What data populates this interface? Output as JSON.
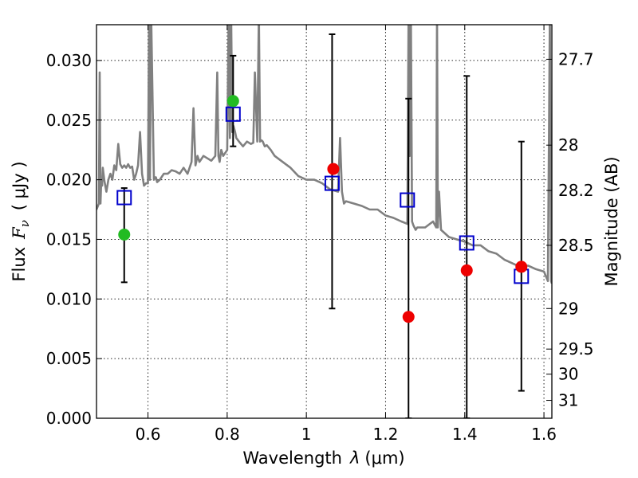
{
  "chart_data": {
    "type": "scatter",
    "xlabel_main": "Wavelength",
    "xlabel_symbol": "λ",
    "xlabel_unit": "(μm)",
    "ylabel_main": "Flux",
    "ylabel_symbol": "F",
    "ylabel_symbol_sub": "ν",
    "ylabel_unit": "( μJy )",
    "y2label": "Magnitude (AB)",
    "xlim": [
      0.47,
      1.62
    ],
    "ylim": [
      0.0,
      0.033
    ],
    "x_ticks": [
      {
        "value": 0.6,
        "label": "0.6"
      },
      {
        "value": 0.8,
        "label": "0.8"
      },
      {
        "value": 1.0,
        "label": "1"
      },
      {
        "value": 1.2,
        "label": "1.2"
      },
      {
        "value": 1.4,
        "label": "1.4"
      },
      {
        "value": 1.6,
        "label": "1.6"
      }
    ],
    "y_ticks": [
      {
        "value": 0.0,
        "label": "0.000"
      },
      {
        "value": 0.005,
        "label": "0.005"
      },
      {
        "value": 0.01,
        "label": "0.010"
      },
      {
        "value": 0.015,
        "label": "0.015"
      },
      {
        "value": 0.02,
        "label": "0.020"
      },
      {
        "value": 0.025,
        "label": "0.025"
      },
      {
        "value": 0.03,
        "label": "0.030"
      }
    ],
    "y2_ticks": [
      {
        "flux": 0.0301,
        "label": "27.7"
      },
      {
        "flux": 0.0229,
        "label": "28"
      },
      {
        "flux": 0.0191,
        "label": "28.2"
      },
      {
        "flux": 0.0145,
        "label": "28.5"
      },
      {
        "flux": 0.0092,
        "label": "29"
      },
      {
        "flux": 0.0058,
        "label": "29.5"
      },
      {
        "flux": 0.0037,
        "label": "30"
      },
      {
        "flux": 0.0015,
        "label": "31"
      }
    ],
    "grid": true,
    "colors": {
      "model": "#808080",
      "model_points": "#0000cc",
      "green_points": "#22bb22",
      "red_points": "#ee0000",
      "errorbars": "#000000"
    },
    "series": [
      {
        "name": "model_spectrum",
        "kind": "line",
        "x": [
          0.47,
          0.476,
          0.478,
          0.48,
          0.482,
          0.484,
          0.486,
          0.49,
          0.495,
          0.5,
          0.505,
          0.51,
          0.515,
          0.52,
          0.525,
          0.53,
          0.535,
          0.54,
          0.545,
          0.55,
          0.555,
          0.56,
          0.565,
          0.57,
          0.575,
          0.58,
          0.585,
          0.59,
          0.595,
          0.6,
          0.603,
          0.605,
          0.608,
          0.615,
          0.618,
          0.62,
          0.623,
          0.63,
          0.64,
          0.65,
          0.66,
          0.67,
          0.68,
          0.69,
          0.7,
          0.71,
          0.715,
          0.72,
          0.725,
          0.73,
          0.74,
          0.75,
          0.76,
          0.77,
          0.775,
          0.778,
          0.781,
          0.785,
          0.79,
          0.8,
          0.804,
          0.807,
          0.81,
          0.813,
          0.816,
          0.82,
          0.823,
          0.83,
          0.84,
          0.85,
          0.86,
          0.866,
          0.87,
          0.876,
          0.88,
          0.883,
          0.885,
          0.887,
          0.89,
          0.895,
          0.9,
          0.91,
          0.92,
          0.94,
          0.96,
          0.98,
          1.0,
          1.02,
          1.04,
          1.06,
          1.08,
          1.085,
          1.09,
          1.095,
          1.1,
          1.12,
          1.14,
          1.16,
          1.18,
          1.2,
          1.22,
          1.24,
          1.255,
          1.258,
          1.261,
          1.264,
          1.267,
          1.27,
          1.273,
          1.276,
          1.28,
          1.3,
          1.32,
          1.328,
          1.33,
          1.332,
          1.335,
          1.34,
          1.36,
          1.38,
          1.4,
          1.42,
          1.44,
          1.46,
          1.48,
          1.5,
          1.52,
          1.54,
          1.56,
          1.58,
          1.6,
          1.61,
          1.615,
          1.618,
          1.62
        ],
        "y": [
          0.0175,
          0.018,
          0.029,
          0.018,
          0.02,
          0.0195,
          0.021,
          0.0199,
          0.019,
          0.02,
          0.0205,
          0.02,
          0.0212,
          0.0208,
          0.023,
          0.0213,
          0.021,
          0.0212,
          0.021,
          0.0213,
          0.021,
          0.0211,
          0.02,
          0.0205,
          0.0212,
          0.024,
          0.0205,
          0.0195,
          0.0197,
          0.0197,
          0.034,
          0.02,
          0.034,
          0.02,
          0.0202,
          0.0202,
          0.0198,
          0.02,
          0.0205,
          0.0205,
          0.0208,
          0.0207,
          0.0205,
          0.021,
          0.0205,
          0.0215,
          0.026,
          0.0212,
          0.022,
          0.0215,
          0.022,
          0.0218,
          0.0216,
          0.022,
          0.029,
          0.022,
          0.0215,
          0.0225,
          0.022,
          0.0225,
          0.034,
          0.0235,
          0.034,
          0.024,
          0.0245,
          0.024,
          0.0235,
          0.0232,
          0.0228,
          0.0232,
          0.023,
          0.0231,
          0.029,
          0.0232,
          0.034,
          0.0232,
          0.0233,
          0.0233,
          0.0232,
          0.0228,
          0.0229,
          0.0225,
          0.022,
          0.0215,
          0.021,
          0.0203,
          0.02,
          0.02,
          0.0197,
          0.0192,
          0.019,
          0.0235,
          0.019,
          0.018,
          0.0182,
          0.018,
          0.0178,
          0.0175,
          0.0175,
          0.017,
          0.0168,
          0.0165,
          0.0163,
          0.034,
          0.022,
          0.034,
          0.0165,
          0.0162,
          0.016,
          0.0158,
          0.016,
          0.016,
          0.0165,
          0.016,
          0.034,
          0.016,
          0.019,
          0.0158,
          0.0152,
          0.015,
          0.0148,
          0.0145,
          0.0145,
          0.014,
          0.0138,
          0.0133,
          0.013,
          0.0127,
          0.0128,
          0.0125,
          0.0123,
          0.0115,
          0.034,
          0.0115,
          0.0113
        ]
      },
      {
        "name": "model_photometry",
        "kind": "square",
        "x": [
          0.54,
          0.815,
          1.065,
          1.255,
          1.405,
          1.543
        ],
        "y": [
          0.0185,
          0.0255,
          0.0197,
          0.0183,
          0.0147,
          0.0119
        ]
      },
      {
        "name": "detections_green",
        "kind": "circle",
        "x": [
          0.54,
          0.815
        ],
        "y": [
          0.0154,
          0.0266
        ]
      },
      {
        "name": "detections_red",
        "kind": "circle",
        "x": [
          1.068,
          1.258,
          1.405,
          1.543
        ],
        "y": [
          0.0209,
          0.0085,
          0.0124,
          0.0127
        ]
      },
      {
        "name": "errorbars",
        "kind": "errorbar",
        "x": [
          0.54,
          0.815,
          1.065,
          1.258,
          1.405,
          1.543
        ],
        "ylow": [
          0.0114,
          0.0228,
          0.0092,
          0.0,
          0.0,
          0.0023
        ],
        "yhigh": [
          0.0193,
          0.0304,
          0.0322,
          0.0268,
          0.0287,
          0.0232
        ]
      }
    ]
  }
}
